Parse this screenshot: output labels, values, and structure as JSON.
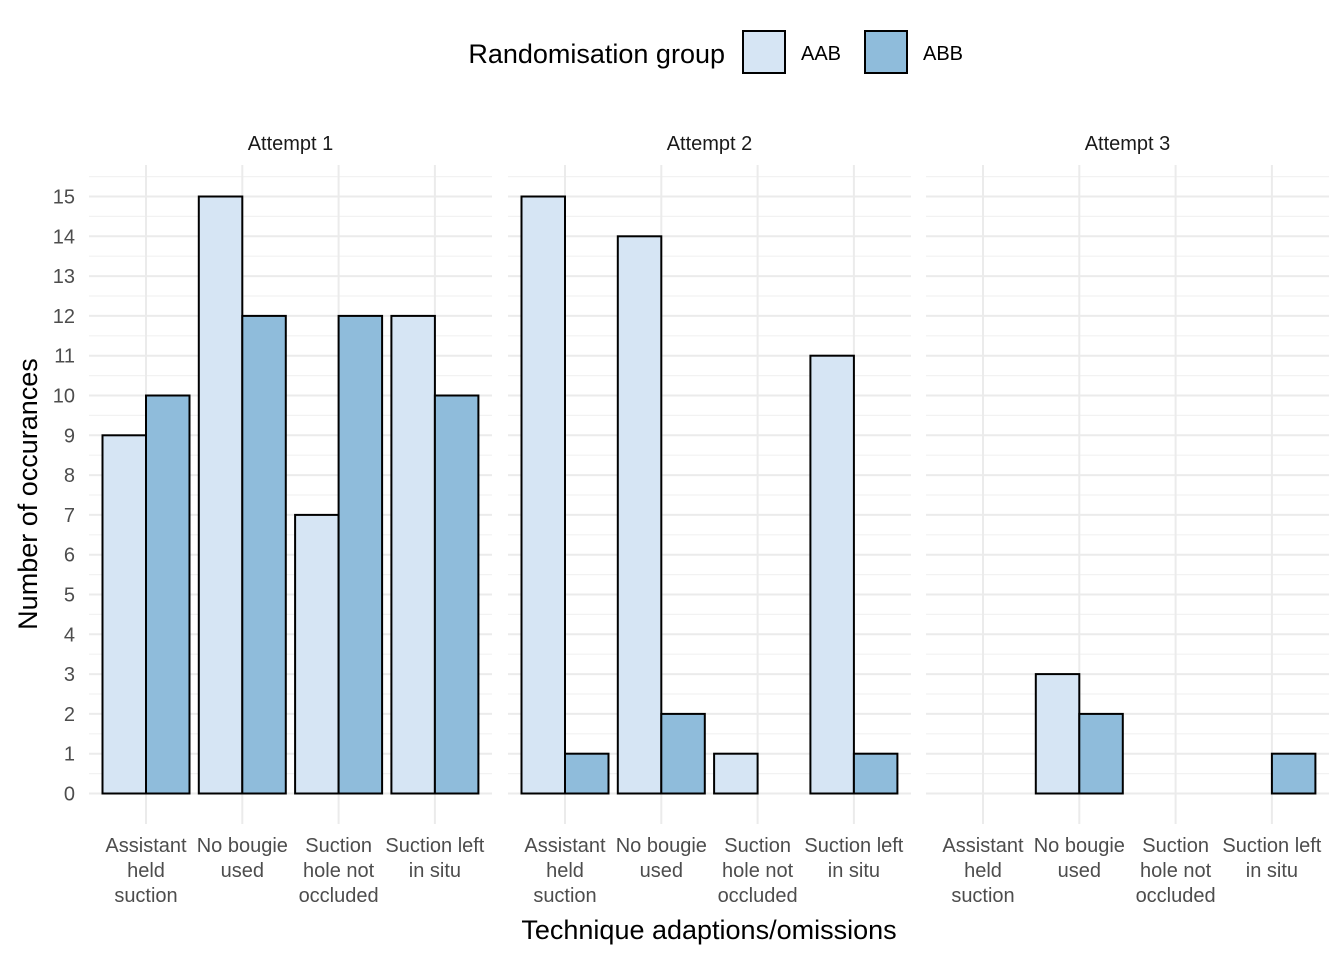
{
  "chart_data": {
    "type": "bar",
    "xlabel": "Technique adaptions/omissions",
    "ylabel": "Number of occurances",
    "ylim": [
      0,
      15
    ],
    "y_ticks": [
      "0",
      "1",
      "2",
      "3",
      "4",
      "5",
      "6",
      "7",
      "8",
      "9",
      "10",
      "11",
      "12",
      "13",
      "14",
      "15"
    ],
    "grid": true,
    "legend": {
      "title": "Randomisation group",
      "position": "top",
      "entries": [
        {
          "label": "AAB",
          "color": "#d6e5f4"
        },
        {
          "label": "ABB",
          "color": "#8fbcdb"
        }
      ]
    },
    "categories": [
      [
        "Assistant",
        "held",
        "suction"
      ],
      [
        "No bougie",
        "used"
      ],
      [
        "Suction",
        "hole not",
        "occluded"
      ],
      [
        "Suction left",
        "in situ"
      ]
    ],
    "panels": [
      {
        "title": "Attempt  1",
        "series": [
          {
            "name": "AAB",
            "values": [
              9,
              15,
              7,
              12
            ]
          },
          {
            "name": "ABB",
            "values": [
              10,
              12,
              12,
              10
            ]
          }
        ]
      },
      {
        "title": "Attempt  2",
        "series": [
          {
            "name": "AAB",
            "values": [
              15,
              14,
              1,
              11
            ]
          },
          {
            "name": "ABB",
            "values": [
              1,
              2,
              0,
              1
            ]
          }
        ]
      },
      {
        "title": "Attempt  3",
        "series": [
          {
            "name": "AAB",
            "values": [
              0,
              3,
              0,
              0
            ]
          },
          {
            "name": "ABB",
            "values": [
              0,
              2,
              0,
              1
            ]
          }
        ]
      }
    ]
  }
}
